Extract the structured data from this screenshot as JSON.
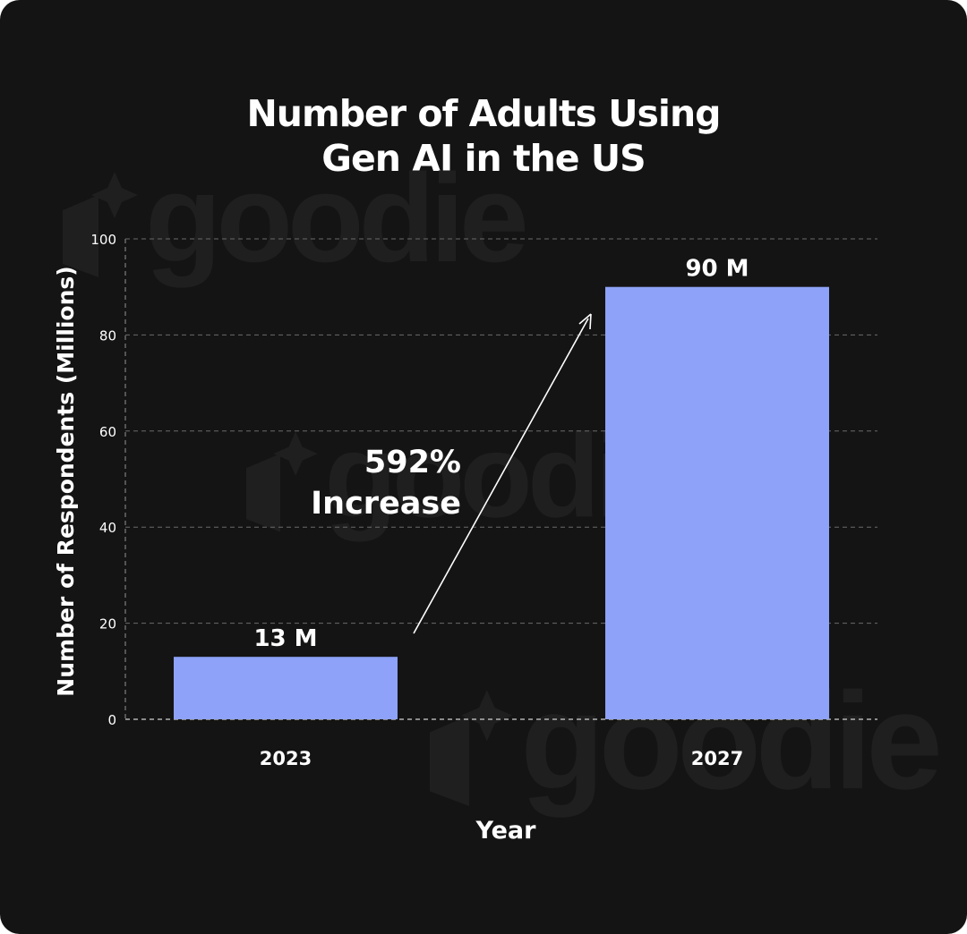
{
  "chart_data": {
    "type": "bar",
    "title_lines": [
      "Number of Adults Using",
      "Gen AI in the US"
    ],
    "xlabel": "Year",
    "ylabel": "Number of Respondents (Millions)",
    "categories": [
      "2023",
      "2027"
    ],
    "values": [
      13,
      90
    ],
    "data_labels": [
      "13 M",
      "90 M"
    ],
    "ylim": [
      0,
      100
    ],
    "yticks": [
      "0",
      "20",
      "40",
      "60",
      "80",
      "100"
    ],
    "grid": true,
    "annotation": [
      "592%",
      "Increase"
    ],
    "watermark": "goodie",
    "colors": {
      "bar": "#8da2f8",
      "background": "#141414",
      "text": "#ffffff",
      "grid": "#6a6a6a",
      "watermark": "#1f1f1f"
    }
  }
}
